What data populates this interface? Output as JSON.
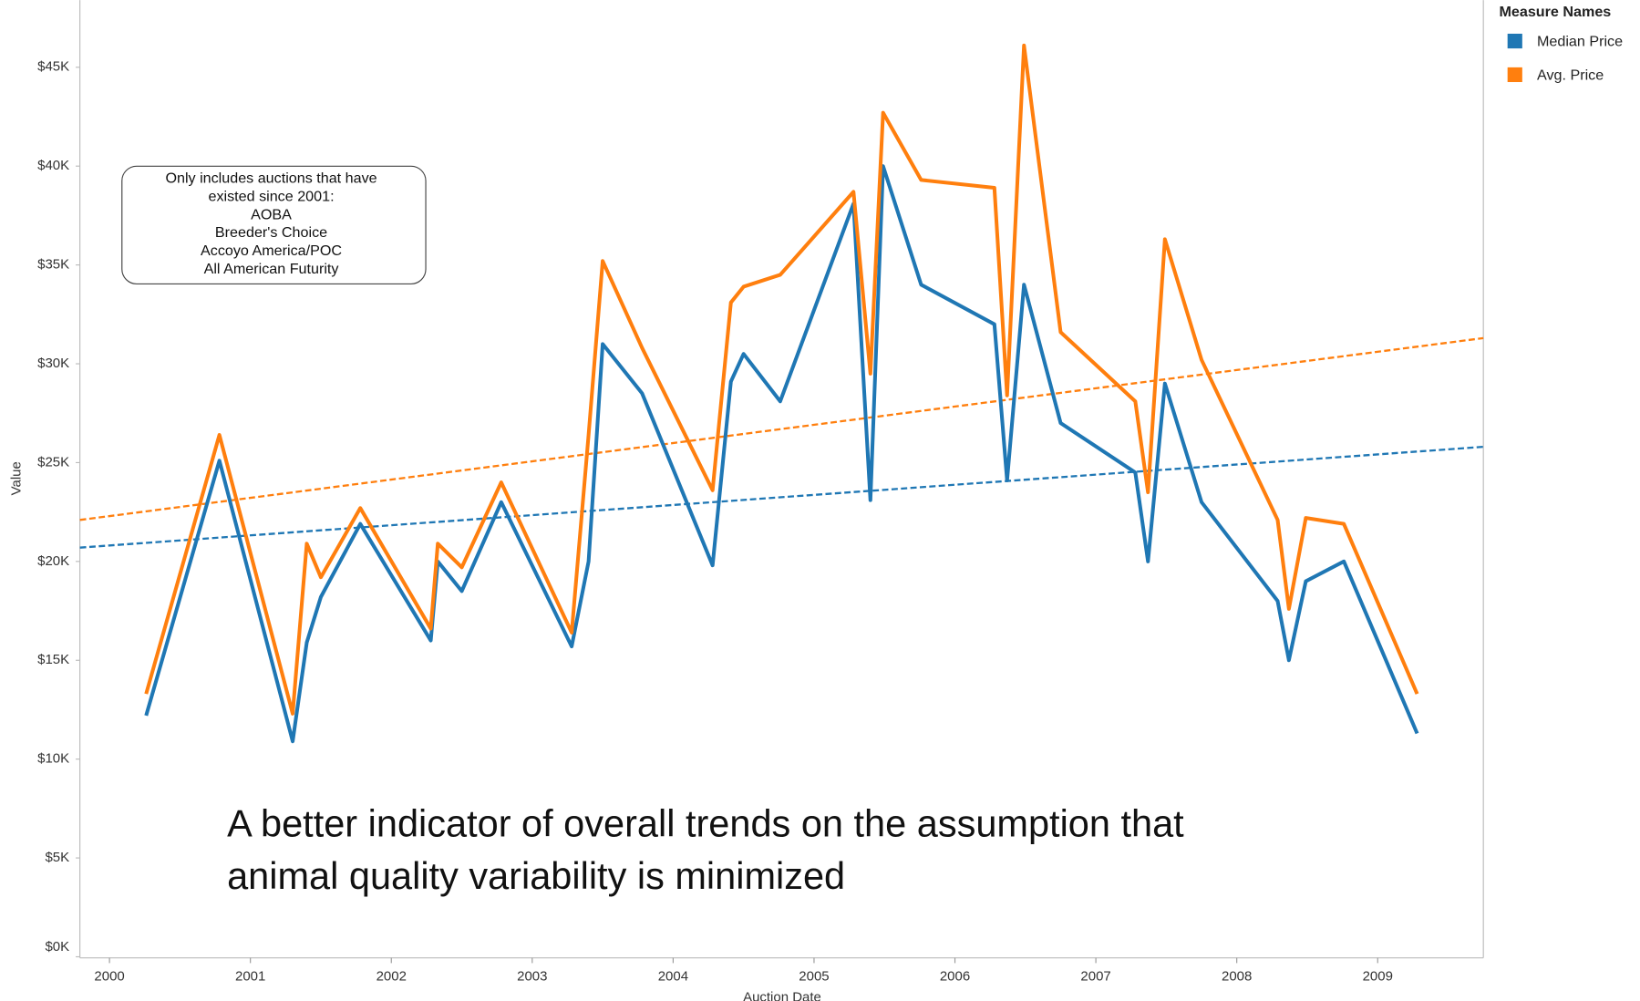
{
  "chart_data": {
    "type": "line",
    "ylabel": "Value",
    "xlabel": "Auction Date",
    "legend_title": "Measure Names",
    "legend": "top-right",
    "annotation": [
      "Only includes auctions that have",
      "existed since 2001:",
      "AOBA",
      "Breeder's Choice",
      "Accoyo America/POC",
      "All American Futurity"
    ],
    "caption": [
      "A better indicator of overall trends on the assumption that",
      "animal quality variability is minimized"
    ],
    "xlim": [
      1999.79,
      2009.75
    ],
    "xticks": [
      2000,
      2001,
      2002,
      2003,
      2004,
      2005,
      2006,
      2007,
      2008,
      2009
    ],
    "ylim": [
      0,
      48400
    ],
    "yticks": [
      {
        "value": 0,
        "label": "$0K"
      },
      {
        "value": 5000,
        "label": "$5K"
      },
      {
        "value": 10000,
        "label": "$10K"
      },
      {
        "value": 15000,
        "label": "$15K"
      },
      {
        "value": 20000,
        "label": "$20K"
      },
      {
        "value": 25000,
        "label": "$25K"
      },
      {
        "value": 30000,
        "label": "$30K"
      },
      {
        "value": 35000,
        "label": "$35K"
      },
      {
        "value": 40000,
        "label": "$40K"
      },
      {
        "value": 45000,
        "label": "$45K"
      }
    ],
    "x": [
      2000.26,
      2000.78,
      2001.3,
      2001.4,
      2001.5,
      2001.78,
      2002.28,
      2002.33,
      2002.5,
      2002.78,
      2003.28,
      2003.4,
      2003.5,
      2003.78,
      2004.28,
      2004.41,
      2004.5,
      2004.76,
      2005.28,
      2005.4,
      2005.49,
      2005.76,
      2006.28,
      2006.37,
      2006.49,
      2006.75,
      2007.28,
      2007.37,
      2007.49,
      2007.75,
      2008.29,
      2008.37,
      2008.49,
      2008.76,
      2009.28
    ],
    "series": [
      {
        "name": "Median Price",
        "color": "#1f77b4",
        "values": [
          12200,
          25100,
          10900,
          15900,
          18200,
          21900,
          16000,
          20000,
          18500,
          23000,
          15700,
          20000,
          31000,
          28500,
          19800,
          29100,
          30500,
          28100,
          38100,
          23100,
          40000,
          34000,
          32000,
          24100,
          34000,
          27000,
          24500,
          20000,
          29000,
          23000,
          18000,
          15000,
          19000,
          20000,
          11300
        ],
        "trend": {
          "x": [
            1999.79,
            2009.75
          ],
          "values": [
            20700,
            25800
          ]
        }
      },
      {
        "name": "Avg. Price",
        "color": "#ff7f0e",
        "values": [
          13300,
          26400,
          12300,
          20900,
          19200,
          22700,
          16600,
          20900,
          19700,
          24000,
          16400,
          26400,
          35200,
          30800,
          23600,
          33100,
          33900,
          34500,
          38700,
          29500,
          42700,
          39300,
          38900,
          28400,
          46100,
          31600,
          28100,
          23500,
          36300,
          30200,
          22100,
          17600,
          22200,
          21900,
          13300
        ],
        "trend": {
          "x": [
            1999.79,
            2009.75
          ],
          "values": [
            22100,
            31300
          ]
        }
      }
    ]
  }
}
